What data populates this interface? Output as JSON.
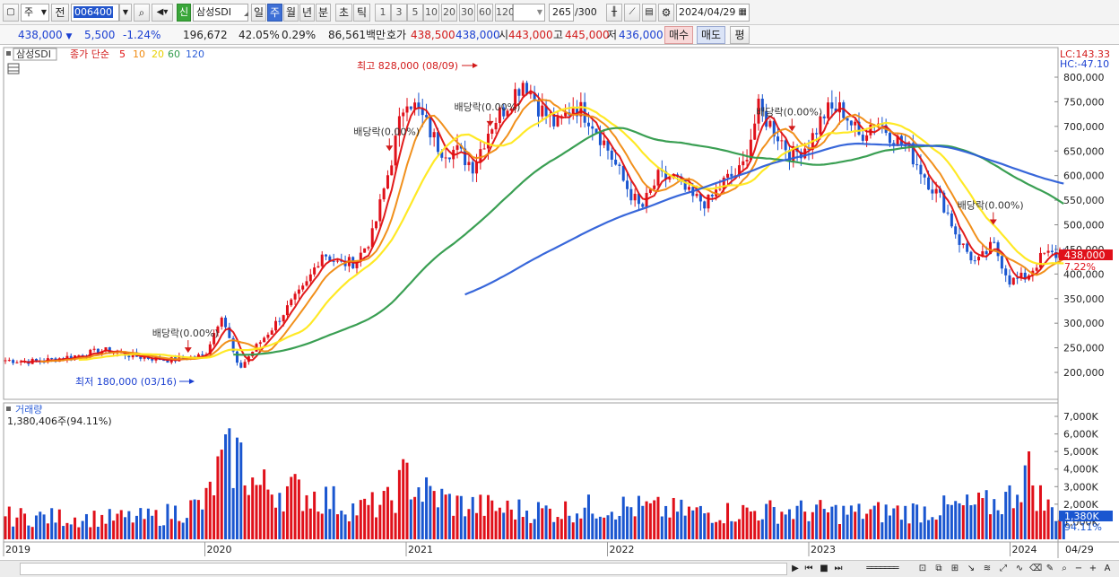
{
  "toolbar": {
    "type_select": "주",
    "prev_label": "전",
    "code": "006400",
    "new_badge": "신",
    "name": "삼성SDI",
    "periods": [
      "일",
      "주",
      "월",
      "년",
      "분",
      "초",
      "틱"
    ],
    "selected_period": "주",
    "minute_options": [
      "1",
      "3",
      "5",
      "10",
      "20",
      "30",
      "60",
      "120"
    ],
    "count_display": "265",
    "count_total": "/300",
    "date": "2024/04/29"
  },
  "quote": {
    "price": "438,000",
    "change": "5,500",
    "change_pct": "-1.24%",
    "volume": "196,672",
    "turnover_pct": "42.05%",
    "vol_change_pct": "0.29%",
    "amount": "86,561백만",
    "ask_label": "호가",
    "ask": "438,500",
    "bid": "438,000",
    "open_label": "시",
    "open": "443,000",
    "high_label": "고",
    "high": "445,000",
    "low_label": "저",
    "low": "436,000",
    "buy_label": "매수",
    "sell_label": "매도",
    "eval_label": "평"
  },
  "legend": {
    "stock_label": "삼성SDI",
    "ma_label": "종가 단순",
    "ma_periods": [
      "5",
      "10",
      "20",
      "60",
      "120"
    ],
    "ma_colors": [
      "#e01010",
      "#f08a10",
      "#ffe81a",
      "#2f9a4a",
      "#2d5fd8"
    ],
    "lc": "LC:143.33",
    "hc": "HC:-47.10",
    "volume_label": "거래량",
    "volume_value": "1,380,406주(94.11%)"
  },
  "chart_data": [
    {
      "type": "candlestick",
      "name": "price",
      "x_axis": [
        "2019",
        "2020",
        "2021",
        "2022",
        "2023",
        "2024",
        "04/29"
      ],
      "y_ticks": [
        "800,000",
        "750,000",
        "700,000",
        "650,000",
        "600,000",
        "550,000",
        "500,000",
        "450,000",
        "400,000",
        "350,000",
        "300,000",
        "250,000",
        "200,000"
      ],
      "ylim": [
        150000,
        830000
      ],
      "last_price": "438,000",
      "last_pct": "7.22%",
      "high_annotation": "최고 828,000 (08/09)",
      "low_annotation": "최저 180,000 (03/16)",
      "dividend_label": "배당락(0.00%)",
      "dividend_points": [
        {
          "date": "2019-12",
          "price": 240000
        },
        {
          "date": "2020-12",
          "price": 650000
        },
        {
          "date": "2021-06",
          "price": 700000
        },
        {
          "date": "2022-12",
          "price": 690000
        },
        {
          "date": "2023-12",
          "price": 500000
        }
      ],
      "close_series": [
        [
          "2019-01",
          225000
        ],
        [
          "2019-03",
          222000
        ],
        [
          "2019-05",
          232000
        ],
        [
          "2019-07",
          245000
        ],
        [
          "2019-09",
          232000
        ],
        [
          "2019-11",
          225000
        ],
        [
          "2020-01",
          235000
        ],
        [
          "2020-02",
          320000
        ],
        [
          "2020-03",
          205000
        ],
        [
          "2020-04",
          250000
        ],
        [
          "2020-05",
          290000
        ],
        [
          "2020-06",
          335000
        ],
        [
          "2020-07",
          375000
        ],
        [
          "2020-08",
          445000
        ],
        [
          "2020-09",
          420000
        ],
        [
          "2020-10",
          425000
        ],
        [
          "2020-11",
          480000
        ],
        [
          "2020-12",
          615000
        ],
        [
          "2021-01",
          765000
        ],
        [
          "2021-02",
          715000
        ],
        [
          "2021-03",
          655000
        ],
        [
          "2021-04",
          650000
        ],
        [
          "2021-05",
          620000
        ],
        [
          "2021-06",
          700000
        ],
        [
          "2021-07",
          745000
        ],
        [
          "2021-08",
          795000
        ],
        [
          "2021-09",
          735000
        ],
        [
          "2021-10",
          700000
        ],
        [
          "2021-11",
          745000
        ],
        [
          "2021-12",
          715000
        ],
        [
          "2022-01",
          655000
        ],
        [
          "2022-02",
          585000
        ],
        [
          "2022-03",
          530000
        ],
        [
          "2022-04",
          595000
        ],
        [
          "2022-05",
          595000
        ],
        [
          "2022-06",
          555000
        ],
        [
          "2022-07",
          545000
        ],
        [
          "2022-08",
          590000
        ],
        [
          "2022-09",
          610000
        ],
        [
          "2022-10",
          735000
        ],
        [
          "2022-11",
          690000
        ],
        [
          "2022-12",
          640000
        ],
        [
          "2023-01",
          665000
        ],
        [
          "2023-02",
          730000
        ],
        [
          "2023-03",
          735000
        ],
        [
          "2023-04",
          680000
        ],
        [
          "2023-05",
          715000
        ],
        [
          "2023-06",
          680000
        ],
        [
          "2023-07",
          650000
        ],
        [
          "2023-08",
          595000
        ],
        [
          "2023-09",
          545000
        ],
        [
          "2023-10",
          465000
        ],
        [
          "2023-11",
          420000
        ],
        [
          "2023-12",
          460000
        ],
        [
          "2024-01",
          385000
        ],
        [
          "2024-02",
          395000
        ],
        [
          "2024-03",
          440000
        ],
        [
          "2024-04",
          438000
        ]
      ]
    },
    {
      "type": "bar",
      "name": "volume",
      "y_ticks": [
        "7,000K",
        "6,000K",
        "5,000K",
        "4,000K",
        "3,000K",
        "2,000K",
        "1,000K"
      ],
      "ylim": [
        0,
        7500
      ],
      "unit": "K shares",
      "last_value": "1,380K",
      "last_pct": "94.11%",
      "monthly_avg": [
        [
          "2019-01",
          1300
        ],
        [
          "2019-04",
          1250
        ],
        [
          "2019-07",
          1200
        ],
        [
          "2019-10",
          1250
        ],
        [
          "2020-01",
          2000
        ],
        [
          "2020-02",
          4200
        ],
        [
          "2020-03",
          4800
        ],
        [
          "2020-04",
          3000
        ],
        [
          "2020-06",
          2800
        ],
        [
          "2020-08",
          2400
        ],
        [
          "2020-10",
          1700
        ],
        [
          "2020-12",
          2100
        ],
        [
          "2021-01",
          3600
        ],
        [
          "2021-02",
          2700
        ],
        [
          "2021-04",
          2000
        ],
        [
          "2021-07",
          1700
        ],
        [
          "2021-10",
          1600
        ],
        [
          "2022-01",
          1900
        ],
        [
          "2022-04",
          1700
        ],
        [
          "2022-07",
          1500
        ],
        [
          "2022-10",
          1600
        ],
        [
          "2023-01",
          1600
        ],
        [
          "2023-04",
          1500
        ],
        [
          "2023-07",
          1600
        ],
        [
          "2023-10",
          1800
        ],
        [
          "2023-12",
          2000
        ],
        [
          "2024-01",
          2400
        ],
        [
          "2024-02",
          4000
        ],
        [
          "2024-03",
          2000
        ],
        [
          "2024-04",
          1380
        ]
      ]
    }
  ]
}
